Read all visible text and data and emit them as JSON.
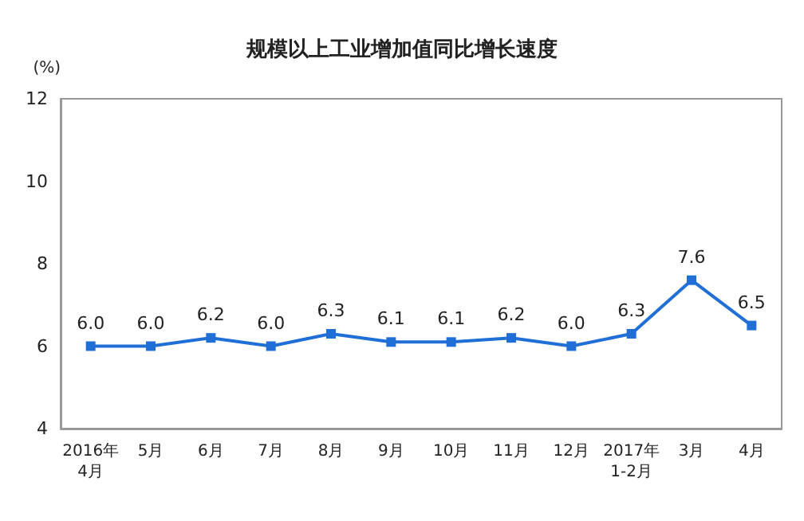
{
  "chart_data": {
    "type": "line",
    "title": "规模以上工业增加值同比增长速度",
    "ylabel": "(%)",
    "categories": [
      "2016年\n4月",
      "5月",
      "6月",
      "7月",
      "8月",
      "9月",
      "10月",
      "11月",
      "12月",
      "2017年\n1-2月",
      "3月",
      "4月"
    ],
    "series": [
      {
        "color": "#1f6fd6",
        "values": [
          6.0,
          6.0,
          6.2,
          6.0,
          6.3,
          6.1,
          6.1,
          6.2,
          6.0,
          6.3,
          7.6,
          6.5
        ],
        "value_labels": [
          "6.0",
          "6.0",
          "6.2",
          "6.0",
          "6.3",
          "6.1",
          "6.1",
          "6.2",
          "6.0",
          "6.3",
          "7.6",
          "6.5"
        ]
      }
    ],
    "ylim": [
      4,
      12
    ],
    "yticks": [
      4,
      6,
      8,
      10,
      12
    ],
    "grid": false,
    "marker": "square",
    "line_style": "solid"
  }
}
